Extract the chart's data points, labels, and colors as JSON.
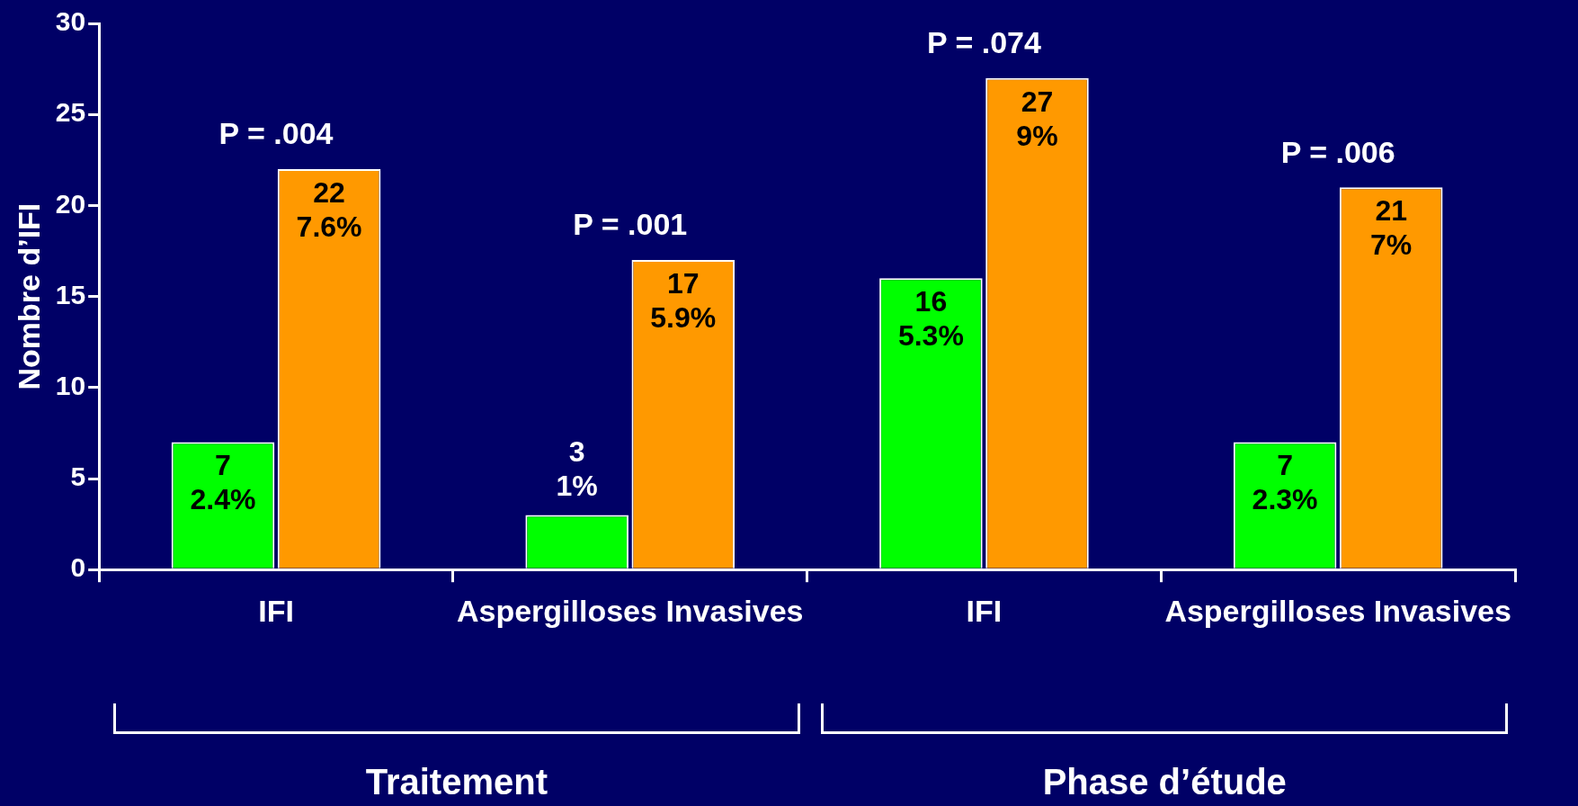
{
  "chart_data": {
    "type": "bar",
    "ylabel": "Nombre d’IFI",
    "categories": [
      "IFI",
      "Aspergilloses Invasives",
      "IFI",
      "Aspergilloses Invasives"
    ],
    "series": [
      {
        "color": "#00ff00",
        "values": [
          7,
          3,
          16,
          7
        ],
        "value_labels": [
          "7\n2.4%",
          "3\n1%",
          "16\n5.3%",
          "7\n2.3%"
        ]
      },
      {
        "color": "#ff9900",
        "values": [
          22,
          17,
          27,
          21
        ],
        "value_labels": [
          "22\n7.6%",
          "17\n5.9%",
          "27\n9%",
          "21\n7%"
        ]
      }
    ],
    "ylim": [
      0,
      30
    ],
    "yticks": [
      0,
      5,
      10,
      15,
      20,
      25,
      30
    ],
    "grid": false,
    "legend": false,
    "annotations": [
      "P = .004",
      "P = .001",
      "P = .074",
      "P = .006",
      "Traitement",
      "Phase d’étude"
    ]
  }
}
